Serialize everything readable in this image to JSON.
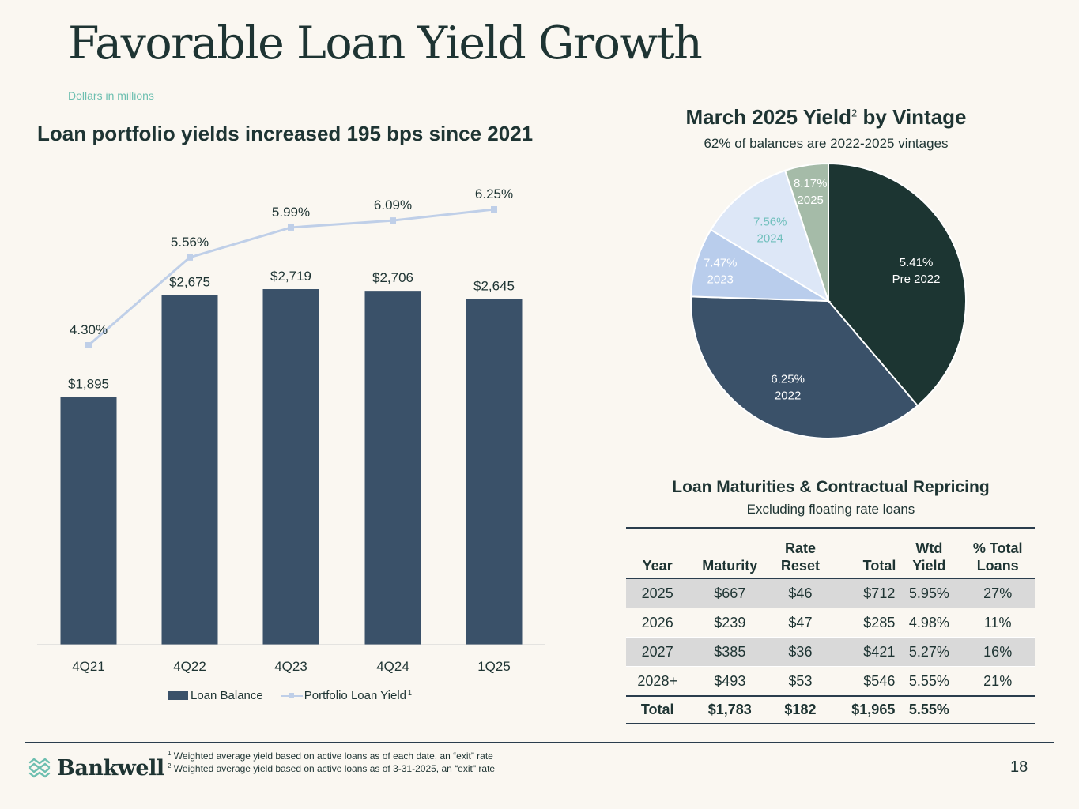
{
  "page": {
    "title": "Favorable Loan Yield Growth",
    "units_note": "Dollars in millions",
    "page_number": "18",
    "logo_text": "Bankwell"
  },
  "footnotes": [
    {
      "mark": "1",
      "text": "Weighted average yield based on active loans as of each date, an “exit” rate"
    },
    {
      "mark": "2",
      "text": "Weighted average yield based on active loans as of 3-31-2025, an “exit\" rate"
    }
  ],
  "chart_data": [
    {
      "type": "bar",
      "title": "Loan portfolio yields increased 195 bps since 2021",
      "categories": [
        "4Q21",
        "4Q22",
        "4Q23",
        "4Q24",
        "1Q25"
      ],
      "series": [
        {
          "name": "Loan Balance",
          "kind": "bar",
          "values": [
            1895,
            2675,
            2719,
            2706,
            2645
          ],
          "labels": [
            "$1,895",
            "$2,675",
            "$2,719",
            "$2,706",
            "$2,645"
          ],
          "color": "#3a5169"
        },
        {
          "name": "Portfolio Loan Yield",
          "footnote": "1",
          "kind": "line",
          "values": [
            4.3,
            5.56,
            5.99,
            6.09,
            6.25
          ],
          "labels": [
            "4.30%",
            "5.56%",
            "5.99%",
            "6.09%",
            "6.25%"
          ],
          "color": "#bfcfe8"
        }
      ],
      "legend": "bottom",
      "grid": false
    },
    {
      "type": "pie",
      "title": "March 2025 Yield",
      "title_footnote": "2",
      "title_suffix": "by Vintage",
      "subtitle": "62% of balances are 2022-2025 vintages",
      "slices": [
        {
          "label": "Pre 2022",
          "yield": "5.41%",
          "share": 38,
          "color": "#1c3532",
          "text_color": "#ffffff"
        },
        {
          "label": "2022",
          "yield": "6.25%",
          "share": 36,
          "color": "#3a5169",
          "text_color": "#ffffff"
        },
        {
          "label": "2023",
          "yield": "7.47%",
          "share": 8,
          "color": "#b9cdec",
          "text_color": "#ffffff"
        },
        {
          "label": "2024",
          "yield": "7.56%",
          "share": 11,
          "color": "#dde7f7",
          "text_color": "#6fbfbc"
        },
        {
          "label": "2025",
          "yield": "8.17%",
          "share": 5,
          "color": "#a5bba8",
          "text_color": "#ffffff"
        }
      ]
    }
  ],
  "table": {
    "title": "Loan Maturities & Contractual Repricing",
    "subtitle": "Excluding floating rate loans",
    "headers": [
      {
        "l1": "",
        "l2": "Year"
      },
      {
        "l1": "",
        "l2": "Maturity"
      },
      {
        "l1": "Rate",
        "l2": "Reset"
      },
      {
        "l1": "",
        "l2": "Total"
      },
      {
        "l1": "Wtd",
        "l2": "Yield"
      },
      {
        "l1": "% Total",
        "l2": "Loans"
      }
    ],
    "rows": [
      [
        "2025",
        "$667",
        "$46",
        "$712",
        "5.95%",
        "27%"
      ],
      [
        "2026",
        "$239",
        "$47",
        "$285",
        "4.98%",
        "11%"
      ],
      [
        "2027",
        "$385",
        "$36",
        "$421",
        "5.27%",
        "16%"
      ],
      [
        "2028+",
        "$493",
        "$53",
        "$546",
        "5.55%",
        "21%"
      ]
    ],
    "total": [
      "Total",
      "$1,783",
      "$182",
      "$1,965",
      "5.55%",
      ""
    ]
  }
}
